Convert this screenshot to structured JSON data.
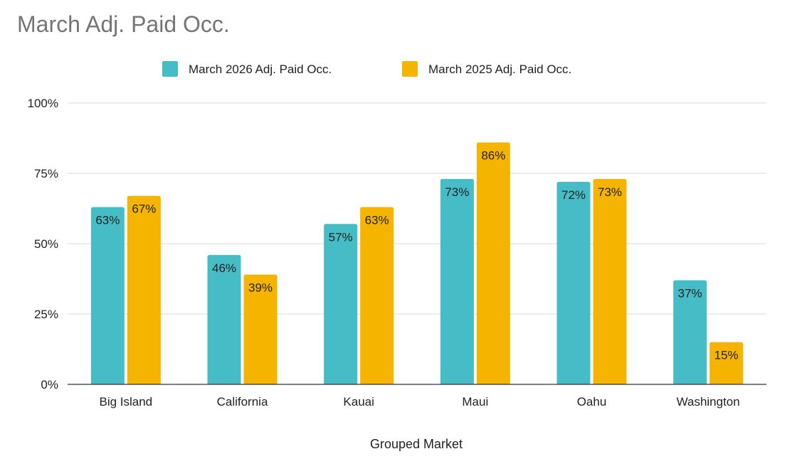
{
  "chart_data": {
    "type": "bar",
    "title": "March Adj. Paid Occ.",
    "xlabel": "Grouped Market",
    "ylabel": "",
    "categories": [
      "Big Island",
      "California",
      "Kauai",
      "Maui",
      "Oahu",
      "Washington"
    ],
    "series": [
      {
        "name": "March 2026 Adj. Paid Occ.",
        "color": "#46bdc6",
        "values": [
          0.63,
          0.46,
          0.57,
          0.73,
          0.72,
          0.37
        ],
        "labels": [
          "63%",
          "46%",
          "57%",
          "73%",
          "72%",
          "37%"
        ]
      },
      {
        "name": "March 2025 Adj. Paid Occ.",
        "color": "#f4b400",
        "values": [
          0.67,
          0.39,
          0.63,
          0.86,
          0.73,
          0.15
        ],
        "labels": [
          "67%",
          "39%",
          "63%",
          "86%",
          "73%",
          "15%"
        ]
      }
    ],
    "ylim": [
      0,
      1
    ],
    "yticks": [
      {
        "value": 0,
        "label": "0%"
      },
      {
        "value": 0.25,
        "label": "25%"
      },
      {
        "value": 0.5,
        "label": "50%"
      },
      {
        "value": 0.75,
        "label": "75%"
      },
      {
        "value": 1,
        "label": "100%"
      }
    ],
    "grid": true,
    "legend_position": "top"
  }
}
